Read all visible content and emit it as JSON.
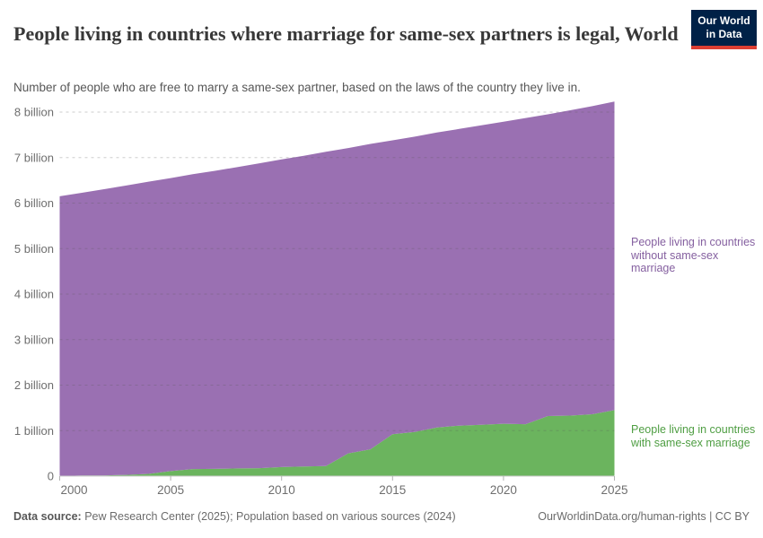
{
  "header": {
    "title": "People living in countries where marriage for same-sex partners is legal, World",
    "subtitle": "Number of people who are free to marry a same-sex partner, based on the laws of the country they live in.",
    "logo": {
      "line1": "Our World",
      "line2": "in Data",
      "bg_color": "#002147",
      "accent_color": "#dc3e32"
    }
  },
  "chart_data": {
    "type": "area",
    "stacked": true,
    "title": "People living in countries where marriage for same-sex partners is legal, World",
    "xlabel": "",
    "ylabel": "",
    "x": [
      2000,
      2001,
      2002,
      2003,
      2004,
      2005,
      2006,
      2007,
      2008,
      2009,
      2010,
      2011,
      2012,
      2013,
      2014,
      2015,
      2016,
      2017,
      2018,
      2019,
      2020,
      2021,
      2022,
      2023,
      2024,
      2025
    ],
    "series": [
      {
        "name": "People living in countries with same-sex marriage",
        "color": "#6bb45e",
        "label_color": "#4f9e43",
        "unit": "billion people",
        "values": [
          0,
          0.016,
          0.016,
          0.027,
          0.05,
          0.11,
          0.155,
          0.16,
          0.17,
          0.175,
          0.2,
          0.21,
          0.22,
          0.5,
          0.59,
          0.92,
          0.97,
          1.07,
          1.11,
          1.13,
          1.15,
          1.14,
          1.32,
          1.33,
          1.36,
          1.45
        ]
      },
      {
        "name": "People living in countries without same-sex marriage",
        "color": "#9a70b2",
        "label_color": "#8560a0",
        "unit": "billion people",
        "values": [
          6.15,
          6.21,
          6.29,
          6.36,
          6.42,
          6.44,
          6.48,
          6.55,
          6.62,
          6.7,
          6.76,
          6.83,
          6.91,
          6.71,
          6.71,
          6.46,
          6.49,
          6.48,
          6.52,
          6.58,
          6.64,
          6.73,
          6.63,
          6.71,
          6.77,
          6.78
        ]
      }
    ],
    "y_ticks": [
      {
        "value": 0,
        "label": "0"
      },
      {
        "value": 1,
        "label": "1 billion"
      },
      {
        "value": 2,
        "label": "2 billion"
      },
      {
        "value": 3,
        "label": "3 billion"
      },
      {
        "value": 4,
        "label": "4 billion"
      },
      {
        "value": 5,
        "label": "5 billion"
      },
      {
        "value": 6,
        "label": "6 billion"
      },
      {
        "value": 7,
        "label": "7 billion"
      },
      {
        "value": 8,
        "label": "8 billion"
      }
    ],
    "x_ticks": [
      2000,
      2005,
      2010,
      2015,
      2020,
      2025
    ],
    "ylim": [
      0,
      8.23
    ],
    "xlim": [
      2000,
      2025
    ],
    "grid": "dashed horizontal",
    "legend_position": "right-of-plot annotations",
    "axis_text_color": "#6e6e6e",
    "grid_color": "#d0d0d0",
    "baseline_color": "#cccccc"
  },
  "footer": {
    "datasource_label": "Data source:",
    "datasource_text": " Pew Research Center (2025); Population based on various sources (2024)",
    "right_text": "OurWorldinData.org/human-rights | CC BY"
  }
}
